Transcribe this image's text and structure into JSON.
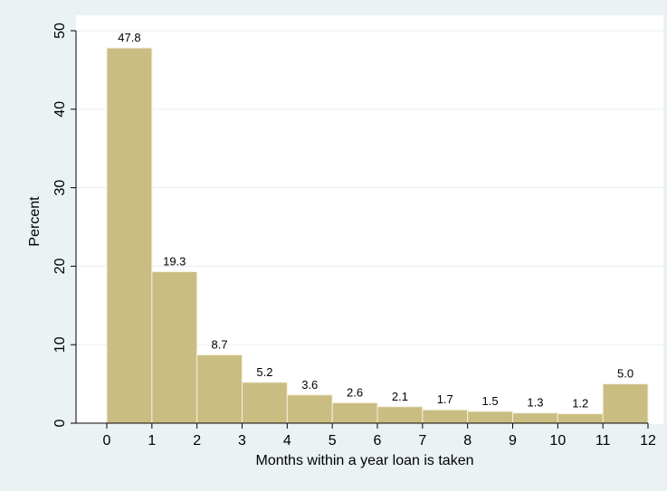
{
  "chart_data": {
    "type": "bar",
    "title": "",
    "xlabel": "Months within a year loan is taken",
    "ylabel": "Percent",
    "x_ticks": [
      "0",
      "1",
      "2",
      "3",
      "4",
      "5",
      "6",
      "7",
      "8",
      "9",
      "10",
      "11",
      "12"
    ],
    "y_ticks": [
      "0",
      "10",
      "20",
      "30",
      "40",
      "50"
    ],
    "xlim": [
      0,
      12
    ],
    "ylim": [
      0,
      50
    ],
    "grid": true,
    "bins": [
      {
        "start": 0,
        "end": 1,
        "value": 47.8,
        "label": "47.8"
      },
      {
        "start": 1,
        "end": 2,
        "value": 19.3,
        "label": "19.3"
      },
      {
        "start": 2,
        "end": 3,
        "value": 8.7,
        "label": "8.7"
      },
      {
        "start": 3,
        "end": 4,
        "value": 5.2,
        "label": "5.2"
      },
      {
        "start": 4,
        "end": 5,
        "value": 3.6,
        "label": "3.6"
      },
      {
        "start": 5,
        "end": 6,
        "value": 2.6,
        "label": "2.6"
      },
      {
        "start": 6,
        "end": 7,
        "value": 2.1,
        "label": "2.1"
      },
      {
        "start": 7,
        "end": 8,
        "value": 1.7,
        "label": "1.7"
      },
      {
        "start": 8,
        "end": 9,
        "value": 1.5,
        "label": "1.5"
      },
      {
        "start": 9,
        "end": 10,
        "value": 1.3,
        "label": "1.3"
      },
      {
        "start": 10,
        "end": 11,
        "value": 1.2,
        "label": "1.2"
      },
      {
        "start": 11,
        "end": 12,
        "value": 5.0,
        "label": "5.0"
      }
    ],
    "colors": {
      "background": "#eaf2f3",
      "plot_background": "#ffffff",
      "bar_fill": "#c9bd82",
      "bar_stroke": "#f4efdc",
      "grid": "#e9eef0",
      "axis": "#000000"
    }
  }
}
